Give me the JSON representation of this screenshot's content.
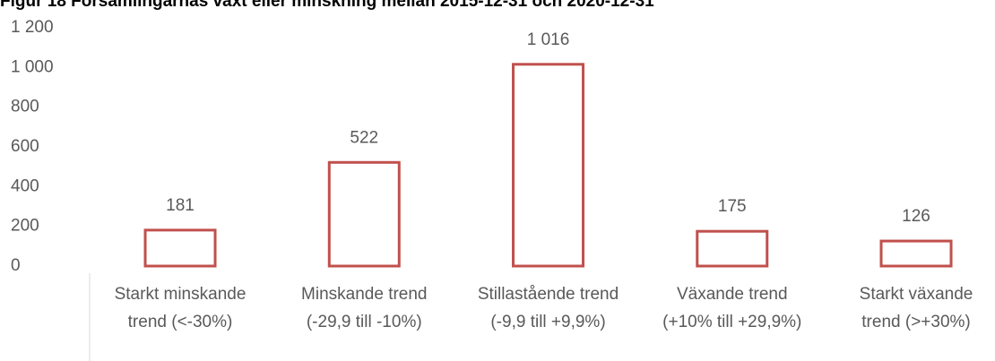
{
  "chart_data": {
    "type": "bar",
    "title": "Figur 18 Församlingarnas växt eller minskning mellan 2015-12-31 och 2020-12-31",
    "categories": [
      "Starkt minskande\ntrend (<-30%)",
      "Minskande trend\n(-29,9 till -10%)",
      "Stillastående trend\n(-9,9 till +9,9%)",
      "Växande trend\n(+10% till +29,9%)",
      "Starkt växande\ntrend (>+30%)"
    ],
    "values": [
      181,
      522,
      1016,
      175,
      126
    ],
    "value_labels": [
      "181",
      "522",
      "1 016",
      "175",
      "126"
    ],
    "color": "#c0504d",
    "ylim": [
      0,
      1200
    ],
    "yticks": [
      0,
      200,
      400,
      600,
      800,
      {
        "value": 1000,
        "label": "1 000"
      },
      {
        "value": 1200,
        "label": "1 200"
      }
    ],
    "grid": false
  }
}
